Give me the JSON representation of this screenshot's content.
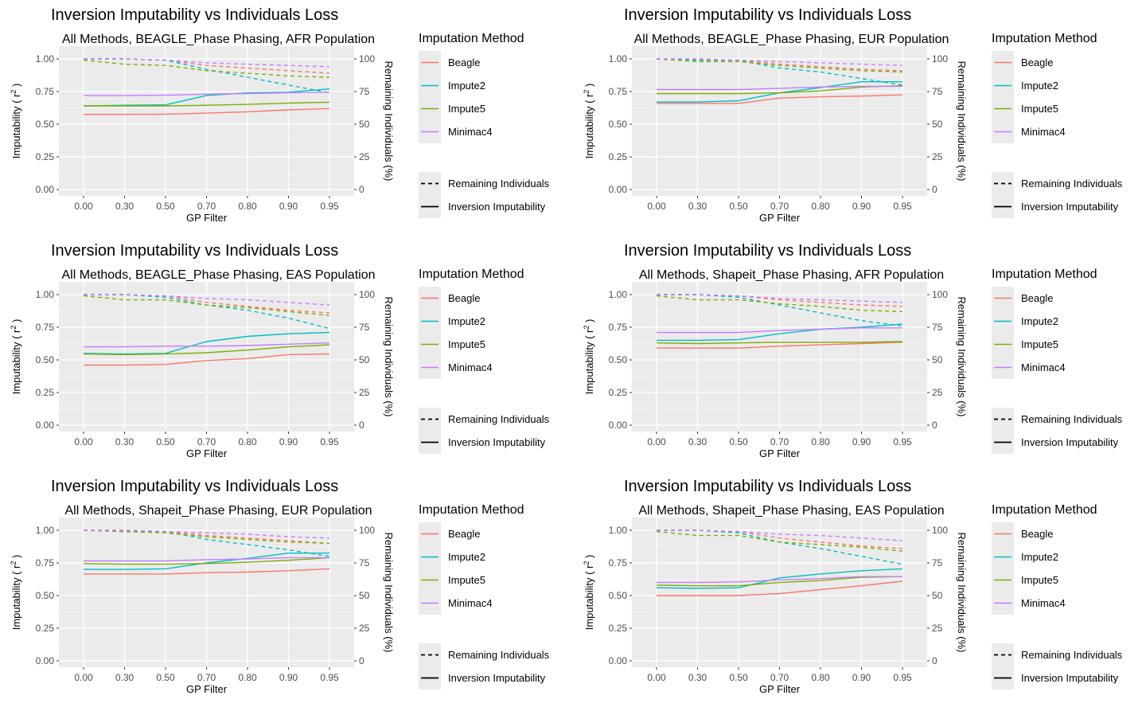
{
  "chart_data": [
    {
      "type": "line",
      "title": "Inversion Imputability vs Individuals Loss",
      "subtitle": "All Methods, BEAGLE_Phase Phasing, AFR Population",
      "xlabel": "GP Filter",
      "ylabel": "Imputability ( r",
      "ylabel_sup": "2",
      "ylabel_end": " )",
      "y2label": "Remaining Individuals (%)",
      "categories": [
        "0.00",
        "0.30",
        "0.50",
        "0.70",
        "0.80",
        "0.90",
        "0.95"
      ],
      "ylim": [
        0,
        1
      ],
      "y_ticks": [
        "0.00",
        "0.25",
        "0.50",
        "0.75",
        "1.00"
      ],
      "y2lim": [
        0,
        100
      ],
      "y2_ticks": [
        "0",
        "25",
        "50",
        "75",
        "100"
      ],
      "legend_title": "Imputation Method",
      "linetype_legend": [
        "Remaining Individuals",
        "Inversion Imputability"
      ],
      "series": [
        {
          "name": "Beagle",
          "color": "#F8766D",
          "imputability": [
            0.575,
            0.575,
            0.577,
            0.585,
            0.595,
            0.61,
            0.62
          ],
          "remaining": [
            100,
            100,
            99,
            95,
            93,
            91,
            89
          ]
        },
        {
          "name": "Impute2",
          "color": "#00BFC4",
          "imputability": [
            0.64,
            0.645,
            0.648,
            0.72,
            0.74,
            0.745,
            0.77
          ],
          "remaining": [
            100,
            100,
            99,
            92,
            86,
            80,
            74
          ]
        },
        {
          "name": "Impute5",
          "color": "#7CAE00",
          "imputability": [
            0.64,
            0.64,
            0.64,
            0.645,
            0.652,
            0.662,
            0.668
          ],
          "remaining": [
            99,
            96,
            95,
            91,
            89,
            87,
            86
          ]
        },
        {
          "name": "Minimac4",
          "color": "#C77CFF",
          "imputability": [
            0.72,
            0.72,
            0.722,
            0.73,
            0.735,
            0.74,
            0.745
          ],
          "remaining": [
            100,
            100,
            99,
            97,
            96,
            95,
            94
          ]
        }
      ]
    },
    {
      "type": "line",
      "title": "Inversion Imputability vs Individuals Loss",
      "subtitle": "All Methods, BEAGLE_Phase Phasing, EUR Population",
      "xlabel": "GP Filter",
      "ylabel": "Imputability ( r",
      "ylabel_sup": "2",
      "ylabel_end": " )",
      "y2label": "Remaining Individuals (%)",
      "categories": [
        "0.00",
        "0.30",
        "0.50",
        "0.70",
        "0.80",
        "0.90",
        "0.95"
      ],
      "ylim": [
        0,
        1
      ],
      "y_ticks": [
        "0.00",
        "0.25",
        "0.50",
        "0.75",
        "1.00"
      ],
      "y2lim": [
        0,
        100
      ],
      "y2_ticks": [
        "0",
        "25",
        "50",
        "75",
        "100"
      ],
      "legend_title": "Imputation Method",
      "linetype_legend": [
        "Remaining Individuals",
        "Inversion Imputability"
      ],
      "series": [
        {
          "name": "Beagle",
          "color": "#F8766D",
          "imputability": [
            0.66,
            0.66,
            0.66,
            0.7,
            0.71,
            0.715,
            0.725
          ],
          "remaining": [
            100,
            99,
            99,
            96,
            94,
            92,
            91
          ]
        },
        {
          "name": "Impute2",
          "color": "#00BFC4",
          "imputability": [
            0.67,
            0.67,
            0.68,
            0.74,
            0.78,
            0.825,
            0.825
          ],
          "remaining": [
            100,
            99,
            99,
            93,
            90,
            85,
            80
          ]
        },
        {
          "name": "Impute5",
          "color": "#7CAE00",
          "imputability": [
            0.735,
            0.735,
            0.735,
            0.74,
            0.755,
            0.785,
            0.795
          ],
          "remaining": [
            100,
            98,
            98,
            95,
            93,
            91,
            90
          ]
        },
        {
          "name": "Minimac4",
          "color": "#C77CFF",
          "imputability": [
            0.765,
            0.765,
            0.765,
            0.775,
            0.785,
            0.79,
            0.79
          ],
          "remaining": [
            100,
            100,
            99,
            98,
            97,
            96,
            95
          ]
        }
      ]
    },
    {
      "type": "line",
      "title": "Inversion Imputability vs Individuals Loss",
      "subtitle": "All Methods, BEAGLE_Phase Phasing, EAS Population",
      "xlabel": "GP Filter",
      "ylabel": "Imputability ( r",
      "ylabel_sup": "2",
      "ylabel_end": " )",
      "y2label": "Remaining Individuals (%)",
      "categories": [
        "0.00",
        "0.30",
        "0.50",
        "0.70",
        "0.80",
        "0.90",
        "0.95"
      ],
      "ylim": [
        0,
        1
      ],
      "y_ticks": [
        "0.00",
        "0.25",
        "0.50",
        "0.75",
        "1.00"
      ],
      "y2lim": [
        0,
        100
      ],
      "y2_ticks": [
        "0",
        "25",
        "50",
        "75",
        "100"
      ],
      "legend_title": "Imputation Method",
      "linetype_legend": [
        "Remaining Individuals",
        "Inversion Imputability"
      ],
      "series": [
        {
          "name": "Beagle",
          "color": "#F8766D",
          "imputability": [
            0.46,
            0.46,
            0.465,
            0.495,
            0.51,
            0.54,
            0.545
          ],
          "remaining": [
            100,
            100,
            99,
            94,
            91,
            88,
            86
          ]
        },
        {
          "name": "Impute2",
          "color": "#00BFC4",
          "imputability": [
            0.55,
            0.545,
            0.55,
            0.64,
            0.68,
            0.7,
            0.71
          ],
          "remaining": [
            100,
            100,
            98,
            92,
            88,
            82,
            74
          ]
        },
        {
          "name": "Impute5",
          "color": "#7CAE00",
          "imputability": [
            0.545,
            0.54,
            0.545,
            0.555,
            0.575,
            0.6,
            0.615
          ],
          "remaining": [
            99,
            96,
            96,
            92,
            90,
            87,
            84
          ]
        },
        {
          "name": "Minimac4",
          "color": "#C77CFF",
          "imputability": [
            0.6,
            0.6,
            0.605,
            0.605,
            0.61,
            0.62,
            0.63
          ],
          "remaining": [
            100,
            100,
            99,
            97,
            96,
            94,
            92
          ]
        }
      ]
    },
    {
      "type": "line",
      "title": "Inversion Imputability vs Individuals Loss",
      "subtitle": "All Methods, Shapeit_Phase Phasing, AFR Population",
      "xlabel": "GP Filter",
      "ylabel": "Imputability ( r",
      "ylabel_sup": "2",
      "ylabel_end": " )",
      "y2label": "Remaining Individuals (%)",
      "categories": [
        "0.00",
        "0.30",
        "0.50",
        "0.70",
        "0.80",
        "0.90",
        "0.95"
      ],
      "ylim": [
        0,
        1
      ],
      "y_ticks": [
        "0.00",
        "0.25",
        "0.50",
        "0.75",
        "1.00"
      ],
      "y2lim": [
        0,
        100
      ],
      "y2_ticks": [
        "0",
        "25",
        "50",
        "75",
        "100"
      ],
      "legend_title": "Imputation Method",
      "linetype_legend": [
        "Remaining Individuals",
        "Inversion Imputability"
      ],
      "series": [
        {
          "name": "Beagle",
          "color": "#F8766D",
          "imputability": [
            0.59,
            0.59,
            0.59,
            0.605,
            0.615,
            0.625,
            0.635
          ],
          "remaining": [
            100,
            100,
            99,
            96,
            94,
            92,
            91
          ]
        },
        {
          "name": "Impute2",
          "color": "#00BFC4",
          "imputability": [
            0.65,
            0.65,
            0.655,
            0.7,
            0.735,
            0.75,
            0.775
          ],
          "remaining": [
            100,
            100,
            98,
            92,
            86,
            80,
            76
          ]
        },
        {
          "name": "Impute5",
          "color": "#7CAE00",
          "imputability": [
            0.63,
            0.625,
            0.63,
            0.635,
            0.635,
            0.635,
            0.64
          ],
          "remaining": [
            99,
            96,
            96,
            93,
            91,
            88,
            87
          ]
        },
        {
          "name": "Minimac4",
          "color": "#C77CFF",
          "imputability": [
            0.71,
            0.71,
            0.71,
            0.725,
            0.735,
            0.745,
            0.745
          ],
          "remaining": [
            100,
            100,
            99,
            97,
            96,
            95,
            94
          ]
        }
      ]
    },
    {
      "type": "line",
      "title": "Inversion Imputability vs Individuals Loss",
      "subtitle": "All Methods, Shapeit_Phase Phasing, EUR Population",
      "xlabel": "GP Filter",
      "ylabel": "Imputability ( r",
      "ylabel_sup": "2",
      "ylabel_end": " )",
      "y2label": "Remaining Individuals (%)",
      "categories": [
        "0.00",
        "0.30",
        "0.50",
        "0.70",
        "0.80",
        "0.90",
        "0.95"
      ],
      "ylim": [
        0,
        1
      ],
      "y_ticks": [
        "0.00",
        "0.25",
        "0.50",
        "0.75",
        "1.00"
      ],
      "y2lim": [
        0,
        100
      ],
      "y2_ticks": [
        "0",
        "25",
        "50",
        "75",
        "100"
      ],
      "legend_title": "Imputation Method",
      "linetype_legend": [
        "Remaining Individuals",
        "Inversion Imputability"
      ],
      "series": [
        {
          "name": "Beagle",
          "color": "#F8766D",
          "imputability": [
            0.665,
            0.665,
            0.665,
            0.675,
            0.68,
            0.69,
            0.705
          ],
          "remaining": [
            100,
            100,
            99,
            96,
            94,
            92,
            90
          ]
        },
        {
          "name": "Impute2",
          "color": "#00BFC4",
          "imputability": [
            0.7,
            0.7,
            0.705,
            0.75,
            0.785,
            0.825,
            0.825
          ],
          "remaining": [
            100,
            99,
            99,
            93,
            89,
            85,
            80
          ]
        },
        {
          "name": "Impute5",
          "color": "#7CAE00",
          "imputability": [
            0.745,
            0.74,
            0.74,
            0.745,
            0.755,
            0.77,
            0.79
          ],
          "remaining": [
            100,
            99,
            98,
            95,
            93,
            91,
            90
          ]
        },
        {
          "name": "Minimac4",
          "color": "#C77CFF",
          "imputability": [
            0.765,
            0.765,
            0.765,
            0.775,
            0.78,
            0.79,
            0.79
          ],
          "remaining": [
            100,
            100,
            99,
            98,
            97,
            95,
            94
          ]
        }
      ]
    },
    {
      "type": "line",
      "title": "Inversion Imputability vs Individuals Loss",
      "subtitle": "All Methods, Shapeit_Phase Phasing, EAS Population",
      "xlabel": "GP Filter",
      "ylabel": "Imputability ( r",
      "ylabel_sup": "2",
      "ylabel_end": " )",
      "y2label": "Remaining Individuals (%)",
      "categories": [
        "0.00",
        "0.30",
        "0.50",
        "0.70",
        "0.80",
        "0.90",
        "0.95"
      ],
      "ylim": [
        0,
        1
      ],
      "y_ticks": [
        "0.00",
        "0.25",
        "0.50",
        "0.75",
        "1.00"
      ],
      "y2lim": [
        0,
        100
      ],
      "y2_ticks": [
        "0",
        "25",
        "50",
        "75",
        "100"
      ],
      "legend_title": "Imputation Method",
      "linetype_legend": [
        "Remaining Individuals",
        "Inversion Imputability"
      ],
      "series": [
        {
          "name": "Beagle",
          "color": "#F8766D",
          "imputability": [
            0.5,
            0.5,
            0.5,
            0.515,
            0.545,
            0.575,
            0.61
          ],
          "remaining": [
            100,
            100,
            99,
            94,
            91,
            88,
            86
          ]
        },
        {
          "name": "Impute2",
          "color": "#00BFC4",
          "imputability": [
            0.56,
            0.555,
            0.56,
            0.635,
            0.665,
            0.69,
            0.705
          ],
          "remaining": [
            100,
            100,
            98,
            91,
            86,
            80,
            74
          ]
        },
        {
          "name": "Impute5",
          "color": "#7CAE00",
          "imputability": [
            0.58,
            0.575,
            0.575,
            0.6,
            0.615,
            0.64,
            0.645
          ],
          "remaining": [
            99,
            96,
            96,
            91,
            89,
            87,
            84
          ]
        },
        {
          "name": "Minimac4",
          "color": "#C77CFF",
          "imputability": [
            0.6,
            0.6,
            0.605,
            0.62,
            0.63,
            0.645,
            0.645
          ],
          "remaining": [
            100,
            100,
            99,
            97,
            96,
            94,
            92
          ]
        }
      ]
    }
  ]
}
